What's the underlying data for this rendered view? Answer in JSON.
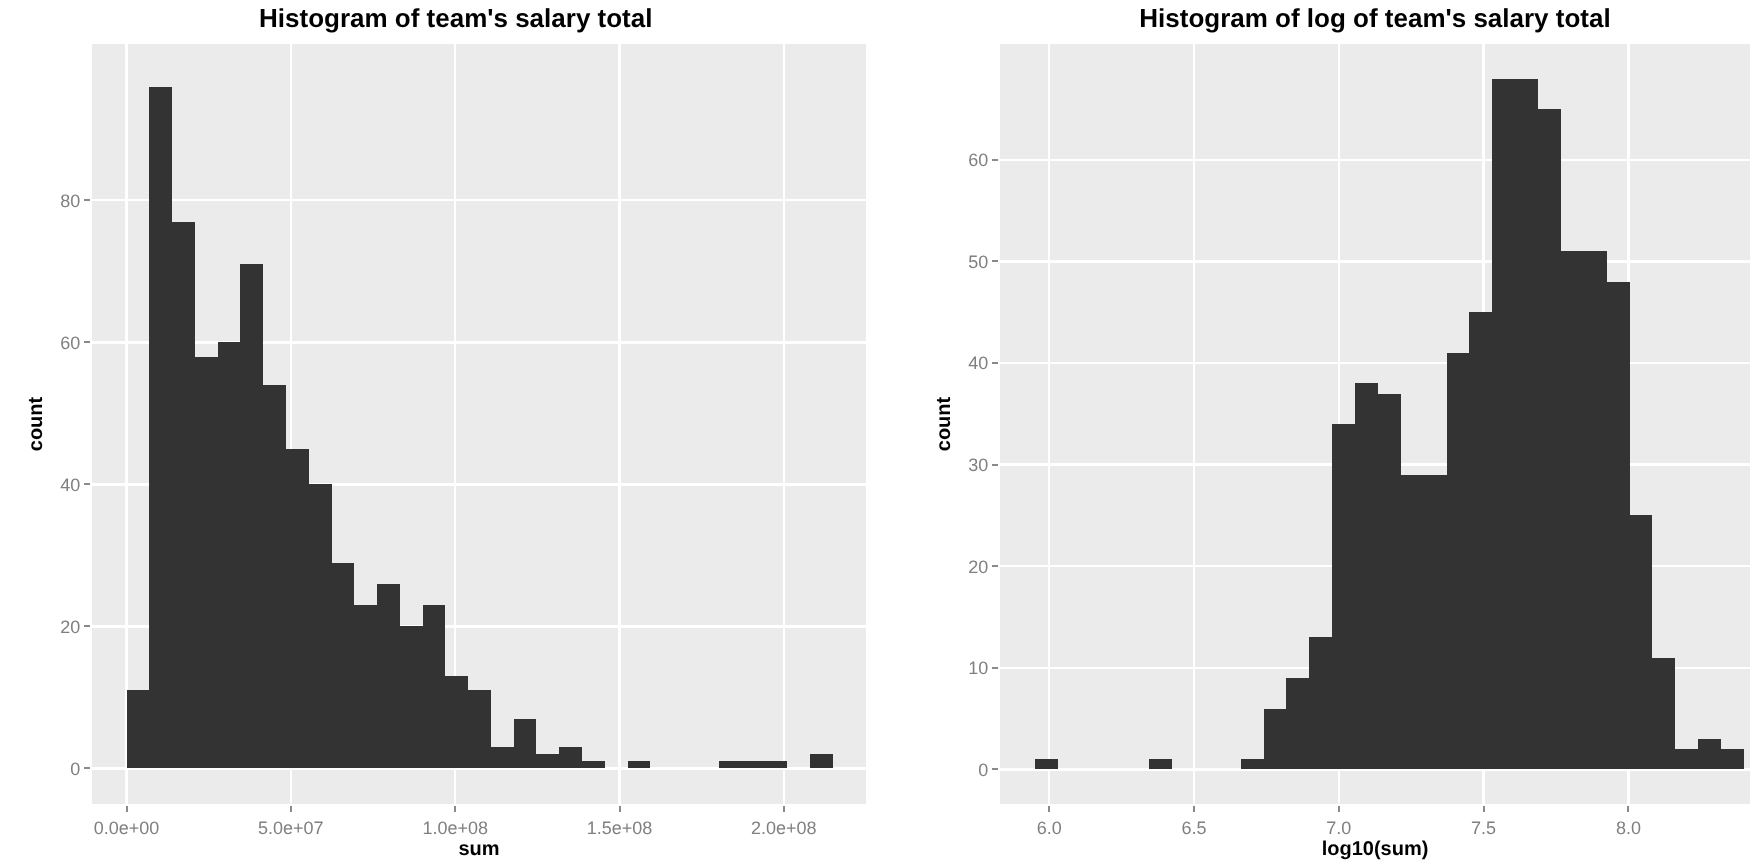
{
  "chart_data": [
    {
      "type": "histogram",
      "title": "Histogram of team's salary total",
      "xlabel": "sum",
      "ylabel": "count",
      "color": "#333333",
      "bins": [
        0,
        6930000,
        13860000,
        20790000,
        27720000,
        34650000,
        41580000,
        48510000,
        55440000,
        62370000,
        69300000,
        76230000,
        83160000,
        90090000,
        97020000,
        103950000,
        110880000,
        117810000,
        124740000,
        131670000,
        138600000,
        145530000,
        152460000,
        159390000,
        166320000,
        173250000,
        180180000,
        187110000,
        194040000,
        200970000,
        207900000,
        214830000
      ],
      "values": [
        11,
        96,
        77,
        58,
        60,
        71,
        54,
        45,
        40,
        29,
        23,
        26,
        20,
        23,
        13,
        11,
        3,
        7,
        2,
        3,
        1,
        0,
        1,
        0,
        0,
        0,
        1,
        1,
        1,
        0,
        2
      ],
      "xlim": [
        -10500000,
        225000000
      ],
      "ylim": [
        -5,
        102
      ],
      "xticks": [
        {
          "value": 0,
          "label": "0.0e+00"
        },
        {
          "value": 50000000,
          "label": "5.0e+07"
        },
        {
          "value": 100000000,
          "label": "1.0e+08"
        },
        {
          "value": 150000000,
          "label": "1.5e+08"
        },
        {
          "value": 200000000,
          "label": "2.0e+08"
        }
      ],
      "yticks": [
        0,
        20,
        40,
        60,
        80
      ],
      "grid": true
    },
    {
      "type": "histogram",
      "title": "Histogram of log of team's salary total",
      "xlabel": "log10(sum)",
      "ylabel": "count",
      "color": "#333333",
      "bins": [
        5.95,
        6.029,
        6.108,
        6.187,
        6.266,
        6.345,
        6.424,
        6.503,
        6.582,
        6.661,
        6.74,
        6.819,
        6.898,
        6.977,
        7.056,
        7.135,
        7.214,
        7.293,
        7.372,
        7.451,
        7.53,
        7.609,
        7.688,
        7.767,
        7.846,
        7.925,
        8.004,
        8.083,
        8.162,
        8.241,
        8.32,
        8.399
      ],
      "values": [
        1,
        0,
        0,
        0,
        0,
        1,
        0,
        0,
        0,
        1,
        6,
        9,
        13,
        34,
        38,
        37,
        29,
        29,
        41,
        45,
        68,
        68,
        65,
        51,
        51,
        48,
        25,
        11,
        2,
        3,
        2
      ],
      "xlim": [
        5.83,
        8.42
      ],
      "ylim": [
        -3.4,
        71.4
      ],
      "xticks": [
        {
          "value": 6,
          "label": "6.0"
        },
        {
          "value": 6.5,
          "label": "6.5"
        },
        {
          "value": 7,
          "label": "7.0"
        },
        {
          "value": 7.5,
          "label": "7.5"
        },
        {
          "value": 8,
          "label": "8.0"
        }
      ],
      "yticks": [
        0,
        10,
        20,
        30,
        40,
        50,
        60
      ],
      "grid": true
    }
  ]
}
